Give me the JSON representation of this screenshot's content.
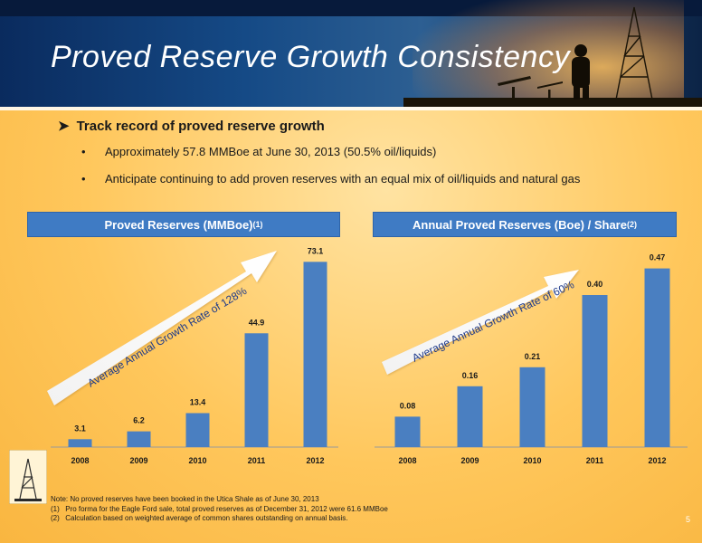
{
  "slide": {
    "title": "Proved Reserve Growth Consistency",
    "page_number": "5"
  },
  "bullets": {
    "main": "Track record of proved reserve growth",
    "subs": [
      "Approximately 57.8 MMBoe at June 30, 2013 (50.5% oil/liquids)",
      "Anticipate continuing to add proven reserves with an equal mix of oil/liquids and natural gas"
    ]
  },
  "charts": {
    "left": {
      "header": "Proved Reserves (MMBoe)",
      "header_sup": "(1)",
      "arrow_text": "Average Annual Growth Rate of 128%"
    },
    "right": {
      "header": "Annual Proved Reserves (Boe) / Share",
      "header_sup": "(2)",
      "arrow_text": "Average Annual Growth Rate of 60%"
    }
  },
  "chart_data": [
    {
      "type": "bar",
      "title": "Proved Reserves (MMBoe)(1)",
      "categories": [
        "2008",
        "2009",
        "2010",
        "2011",
        "2012"
      ],
      "values": [
        3.1,
        6.2,
        13.4,
        44.9,
        73.1
      ],
      "labels": [
        "3.1",
        "6.2",
        "13.4",
        "44.9",
        "73.1"
      ],
      "ylim": [
        0,
        80
      ],
      "grid": false,
      "annotation": "Average Annual Growth Rate of 128%",
      "color": "#4a7fc1"
    },
    {
      "type": "bar",
      "title": "Annual Proved Reserves (Boe) / Share(2)",
      "categories": [
        "2008",
        "2009",
        "2010",
        "2011",
        "2012"
      ],
      "values": [
        0.08,
        0.16,
        0.21,
        0.4,
        0.47
      ],
      "labels": [
        "0.08",
        "0.16",
        "0.21",
        "0.40",
        "0.47"
      ],
      "ylim": [
        0,
        0.55
      ],
      "grid": false,
      "annotation": "Average Annual Growth Rate of 60%",
      "color": "#4a7fc1"
    }
  ],
  "notes": {
    "note": "Note: No proved reserves have been booked in the Utica Shale as of June 30, 2013",
    "items": [
      {
        "num": "(1)",
        "text": "Pro forma for the Eagle Ford sale, total proved reserves as of December 31, 2012 were 61.6 MMBoe"
      },
      {
        "num": "(2)",
        "text": "Calculation based on weighted average of common shares outstanding on annual basis."
      }
    ]
  },
  "colors": {
    "header_bar": "#3f7bc4",
    "bar": "#4a7fc1",
    "title_bg": "#154a86"
  }
}
